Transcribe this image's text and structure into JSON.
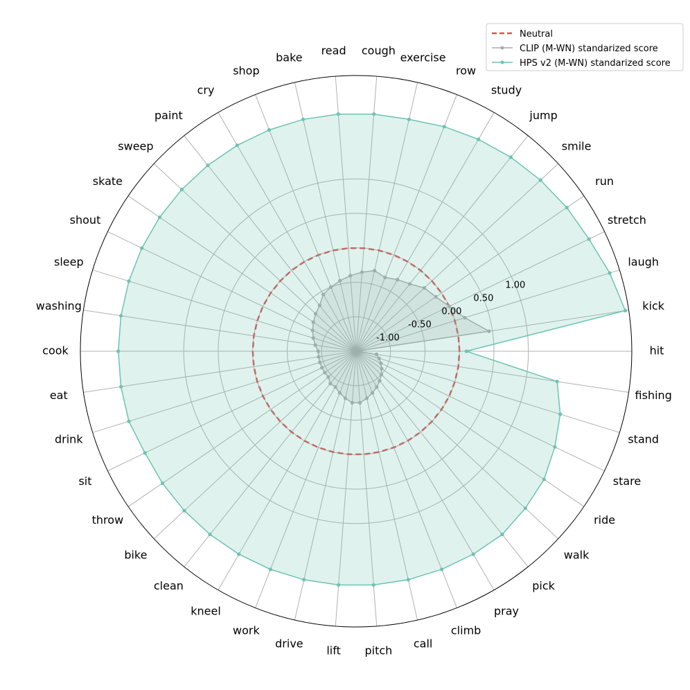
{
  "chart_data": {
    "type": "radar",
    "categories": [
      "hit",
      "kick",
      "laugh",
      "stretch",
      "run",
      "smile",
      "jump",
      "study",
      "row",
      "exercise",
      "cough",
      "read",
      "bake",
      "shop",
      "cry",
      "paint",
      "sweep",
      "skate",
      "shout",
      "sleep",
      "washing",
      "cook",
      "eat",
      "drink",
      "sit",
      "throw",
      "bike",
      "clean",
      "kneel",
      "work",
      "drive",
      "lift",
      "pitch",
      "call",
      "climb",
      "pray",
      "pick",
      "walk",
      "ride",
      "stare",
      "stand",
      "fishing"
    ],
    "rlim": [
      -1.5,
      2.5
    ],
    "rticks": [
      -1.0,
      -0.5,
      0.0,
      0.5,
      1.0
    ],
    "rtick_labels": [
      "-1.00",
      "-0.50",
      "0.00",
      "0.50",
      "1.00"
    ],
    "grid": true,
    "legend_position": "top-right",
    "series": [
      {
        "name": "Neutral",
        "style": "dashed",
        "color": "#d9534f",
        "values": [
          0,
          0,
          0,
          0,
          0,
          0,
          0,
          0,
          0,
          0,
          0,
          0,
          0,
          0,
          0,
          0,
          0,
          0,
          0,
          0,
          0,
          0,
          0,
          0,
          0,
          0,
          0,
          0,
          0,
          0,
          0,
          0,
          0,
          0,
          0,
          0,
          0,
          0,
          0,
          0,
          0,
          0
        ]
      },
      {
        "name": "CLIP (M-WN) standarized score",
        "style": "line-markers",
        "color": "#aaaaaa",
        "values": [
          -1.5,
          0.45,
          0.15,
          0.0,
          -0.1,
          -0.15,
          -0.25,
          -0.3,
          -0.35,
          -0.3,
          -0.35,
          -0.4,
          -0.45,
          -0.5,
          -0.55,
          -0.65,
          -0.7,
          -0.75,
          -0.8,
          -0.85,
          -0.9,
          -0.95,
          -0.95,
          -0.95,
          -0.95,
          -0.95,
          -0.95,
          -0.9,
          -0.9,
          -0.85,
          -0.8,
          -0.75,
          -0.75,
          -0.8,
          -0.85,
          -0.9,
          -0.95,
          -1.0,
          -1.05,
          -1.1,
          -1.15,
          -1.2
        ]
      },
      {
        "name": "HPS v2 (M-WN) standarized score",
        "style": "line-markers",
        "color": "#6cc3b2",
        "values": [
          0.1,
          2.45,
          2.35,
          2.25,
          2.2,
          2.15,
          2.1,
          2.05,
          2.0,
          1.95,
          1.95,
          1.95,
          1.95,
          1.95,
          1.95,
          1.95,
          1.95,
          1.95,
          1.95,
          1.95,
          1.95,
          1.95,
          1.95,
          1.95,
          1.9,
          1.9,
          1.9,
          1.9,
          1.9,
          1.9,
          1.9,
          1.9,
          1.9,
          1.9,
          1.9,
          1.9,
          1.9,
          1.85,
          1.8,
          1.7,
          1.6,
          1.45
        ]
      }
    ]
  }
}
